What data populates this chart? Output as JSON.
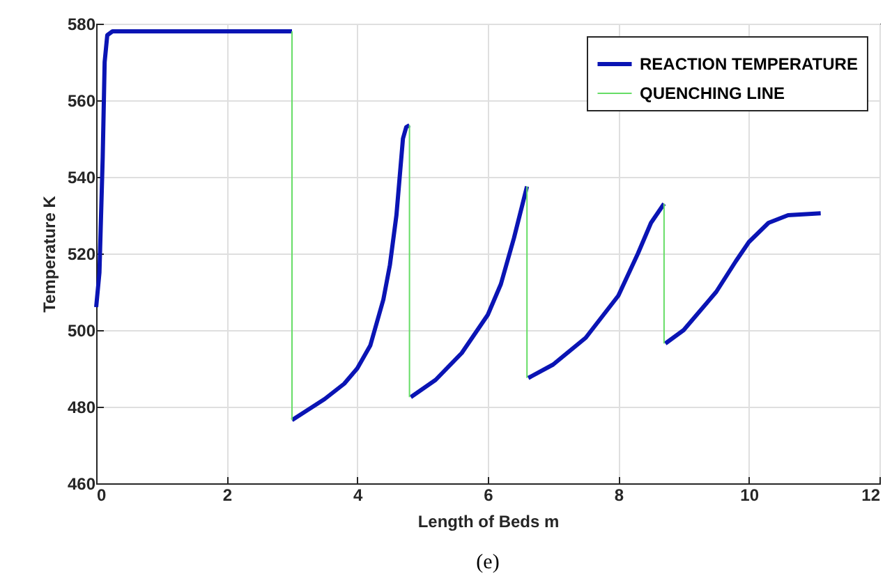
{
  "chart_data": {
    "type": "line",
    "xlabel": "Length of Beds m",
    "ylabel": "Temperature K",
    "xlim": [
      0,
      12
    ],
    "xticks": [
      0,
      2,
      4,
      6,
      8,
      10,
      12
    ],
    "ylim": [
      460,
      580
    ],
    "yticks": [
      460,
      480,
      500,
      520,
      540,
      560,
      580
    ],
    "grid": true,
    "legend": "top right",
    "annotations": [
      "(e)"
    ],
    "series": [
      {
        "name": "REACTION TEMPERATURE",
        "color": "#0a14b4",
        "x": [
          0,
          0.05,
          0.1,
          0.13,
          0.17,
          0.25,
          3.0,
          null,
          3.0,
          3.5,
          3.8,
          4.0,
          4.2,
          4.4,
          4.5,
          4.6,
          4.65,
          4.7,
          4.75,
          4.8,
          null,
          4.82,
          5.2,
          5.6,
          6.0,
          6.2,
          6.4,
          6.6,
          null,
          6.62,
          7.0,
          7.5,
          8.0,
          8.3,
          8.5,
          8.7,
          null,
          8.72,
          9.0,
          9.5,
          9.8,
          10.0,
          10.3,
          10.6,
          11.1
        ],
        "values": [
          506,
          515,
          545,
          570,
          577,
          578,
          578,
          null,
          476.5,
          482,
          486,
          490,
          496,
          508,
          517,
          530,
          540,
          550,
          553,
          553.5,
          null,
          482.5,
          487,
          494,
          504,
          512,
          524,
          537.5,
          null,
          487.5,
          491,
          498,
          509,
          520,
          528,
          533,
          null,
          496.5,
          500,
          510,
          518,
          523,
          528,
          530,
          530.5
        ]
      },
      {
        "name": "QUENCHING LINE",
        "color": "#66dd66",
        "x": [
          3.0,
          3.0,
          null,
          4.8,
          4.8,
          null,
          6.6,
          6.6,
          null,
          8.7,
          8.7
        ],
        "values": [
          578,
          476.5,
          null,
          553.5,
          482.5,
          null,
          537.5,
          487.5,
          null,
          533,
          496.5
        ]
      }
    ]
  }
}
